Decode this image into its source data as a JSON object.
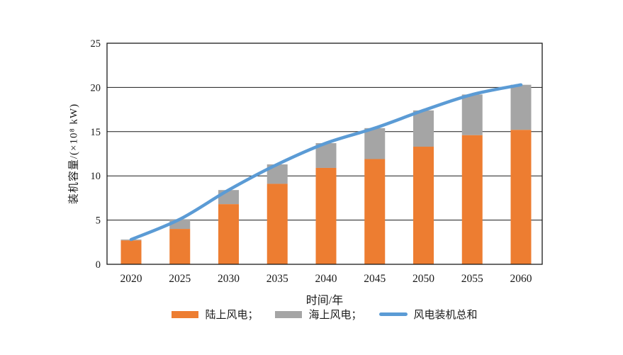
{
  "page": {
    "background": "#ffffff"
  },
  "chart_data": {
    "type": "bar",
    "subtype": "stacked-bars-with-total-line",
    "title": "",
    "categories": [
      "2020",
      "2025",
      "2030",
      "2035",
      "2040",
      "2045",
      "2050",
      "2055",
      "2060"
    ],
    "series": [
      {
        "name": "陆上风电",
        "kind": "bar",
        "color": "#ED7D31",
        "values": [
          2.7,
          4.0,
          6.8,
          9.1,
          10.9,
          11.9,
          13.3,
          14.6,
          15.2
        ]
      },
      {
        "name": "海上风电",
        "kind": "bar",
        "color": "#A5A5A5",
        "values": [
          0.1,
          1.1,
          1.6,
          2.2,
          2.8,
          3.5,
          4.1,
          4.6,
          5.1
        ]
      },
      {
        "name": "风电装机总和",
        "kind": "line",
        "color": "#5B9BD5",
        "values": [
          2.8,
          5.1,
          8.4,
          11.3,
          13.7,
          15.4,
          17.4,
          19.2,
          20.3
        ]
      }
    ],
    "xlabel": "时间/年",
    "ylabel": "装机容量/(×10⁸ kW)",
    "ylim": [
      0,
      25
    ],
    "yticks": [
      0,
      5,
      10,
      15,
      20,
      25
    ],
    "grid": true,
    "frame": true,
    "legend_position": "bottom",
    "axis_color": "#1a1a1a"
  },
  "legend": {
    "items": [
      {
        "label": "陆上风电；"
      },
      {
        "label": "海上风电；"
      },
      {
        "label": "风电装机总和"
      }
    ]
  }
}
